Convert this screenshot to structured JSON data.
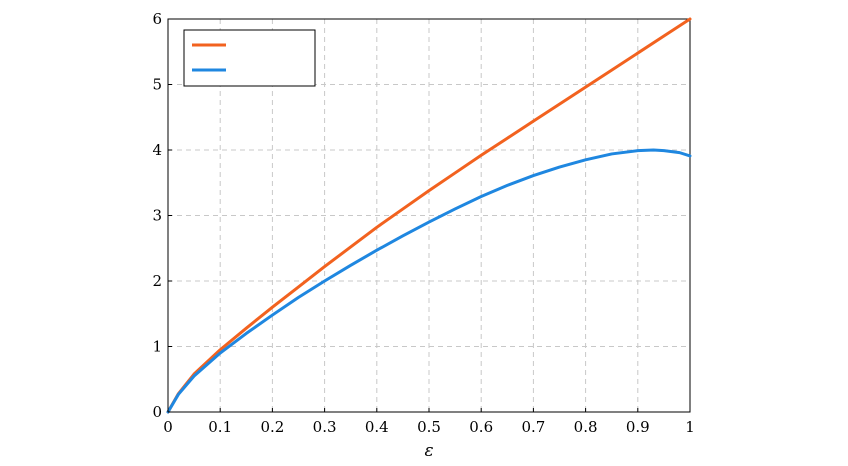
{
  "chart_data": {
    "type": "line",
    "title": "",
    "xlabel": "ε",
    "ylabel": "",
    "xlim": [
      0,
      1
    ],
    "ylim": [
      0,
      6
    ],
    "grid": true,
    "legend_placement": "top-left",
    "x_ticks": [
      "0",
      "0.1",
      "0.2",
      "0.3",
      "0.4",
      "0.5",
      "0.6",
      "0.7",
      "0.8",
      "0.9",
      "1"
    ],
    "y_ticks": [
      "0",
      "1",
      "2",
      "3",
      "4",
      "5",
      "6"
    ],
    "series": [
      {
        "color": "#f2621f",
        "x": [
          0,
          0.02,
          0.05,
          0.1,
          0.15,
          0.2,
          0.25,
          0.3,
          0.35,
          0.4,
          0.45,
          0.5,
          0.55,
          0.6,
          0.65,
          0.7,
          0.75,
          0.8,
          0.85,
          0.9,
          0.95,
          1.0
        ],
        "values": [
          0,
          0.28,
          0.58,
          0.95,
          1.28,
          1.6,
          1.91,
          2.22,
          2.52,
          2.82,
          3.1,
          3.38,
          3.65,
          3.92,
          4.18,
          4.44,
          4.7,
          4.96,
          5.22,
          5.48,
          5.74,
          6.0
        ]
      },
      {
        "color": "#1f87e0",
        "x": [
          0,
          0.02,
          0.05,
          0.1,
          0.15,
          0.2,
          0.25,
          0.3,
          0.35,
          0.4,
          0.45,
          0.5,
          0.55,
          0.6,
          0.65,
          0.7,
          0.75,
          0.8,
          0.85,
          0.9,
          0.93,
          0.95,
          0.98,
          1.0
        ],
        "values": [
          0,
          0.27,
          0.55,
          0.9,
          1.2,
          1.48,
          1.75,
          2.0,
          2.24,
          2.47,
          2.69,
          2.9,
          3.1,
          3.29,
          3.46,
          3.61,
          3.74,
          3.85,
          3.94,
          3.99,
          4.0,
          3.99,
          3.96,
          3.91
        ]
      }
    ]
  }
}
